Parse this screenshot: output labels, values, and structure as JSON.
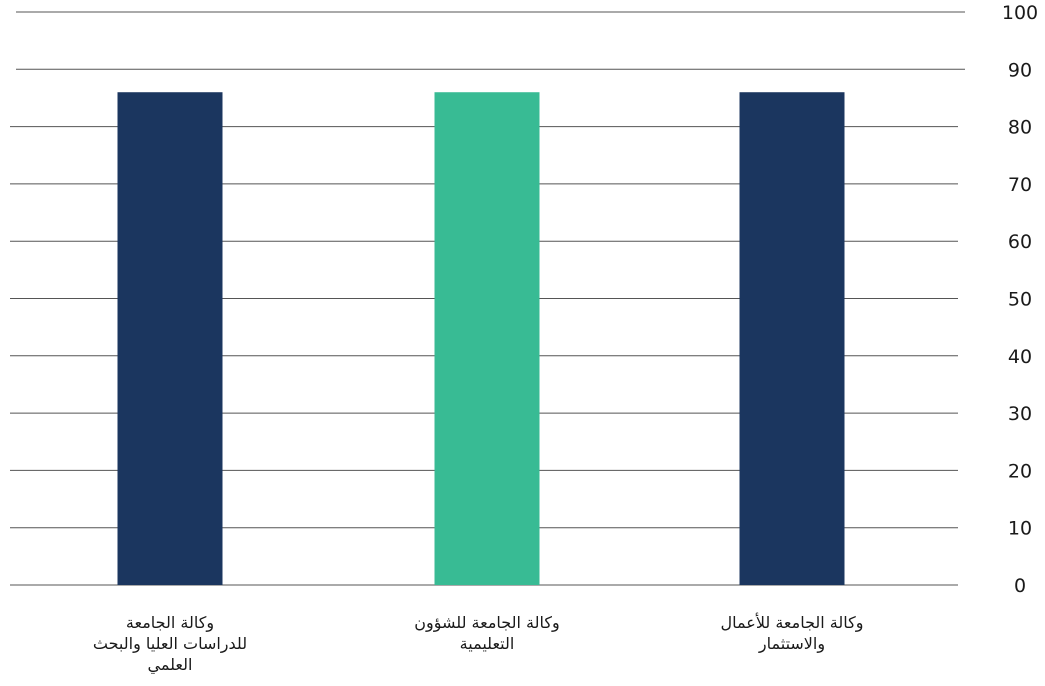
{
  "chart_data": {
    "type": "bar",
    "categories": [
      {
        "lines": [
          "وكالة الجامعة",
          "للدراسات العليا والبحث",
          "العلمي"
        ]
      },
      {
        "lines": [
          "وكالة الجامعة للشؤون",
          "التعليمية"
        ]
      },
      {
        "lines": [
          "وكالة الجامعة للأعمال",
          "والاستثمار"
        ]
      }
    ],
    "values": [
      86,
      86,
      86
    ],
    "colors": [
      "#1b365f",
      "#38bb94",
      "#1b365f"
    ],
    "ylim": [
      0,
      100
    ],
    "yticks": [
      "0",
      "10",
      "20",
      "30",
      "40",
      "50",
      "60",
      "70",
      "80",
      "90",
      "100"
    ],
    "grid": true,
    "y_axis_side": "right",
    "title": "",
    "xlabel": "",
    "ylabel": ""
  }
}
